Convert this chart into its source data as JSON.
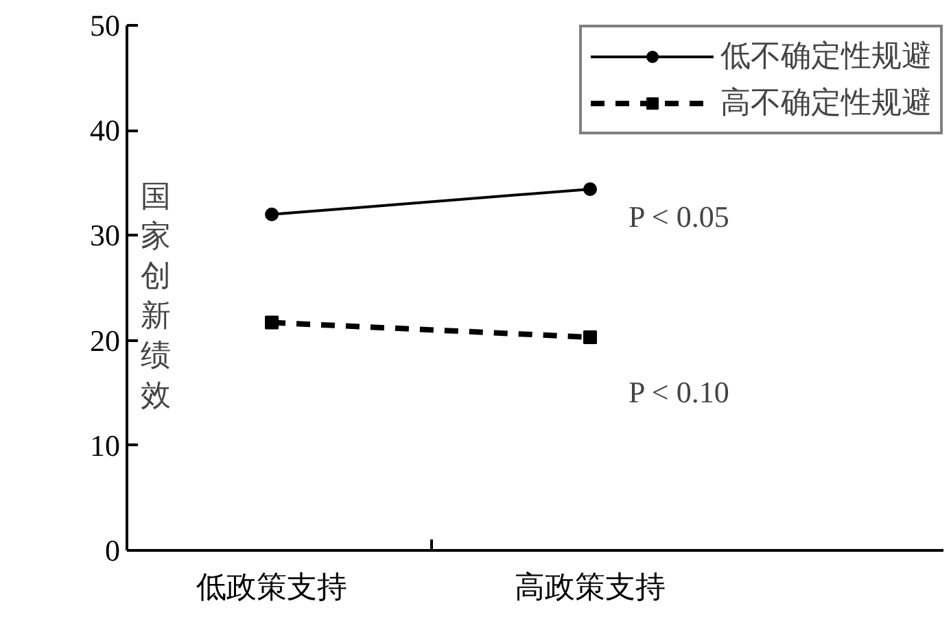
{
  "chart_data": {
    "type": "line",
    "ylabel": "国家创新绩效",
    "categories": [
      "低政策支持",
      "高政策支持"
    ],
    "series": [
      {
        "name": "低不确定性规避",
        "color": "#000000",
        "values": [
          32,
          34.4
        ],
        "marker": "circle",
        "line_style": "solid"
      },
      {
        "name": "高不确定性规避",
        "color": "#000000",
        "values": [
          21.7,
          20.3
        ],
        "marker": "square",
        "line_style": "dashed"
      }
    ],
    "annotations": [
      "P < 0.05",
      "P < 0.10"
    ],
    "ylim": [
      0,
      50
    ],
    "yticks": [
      0,
      10,
      20,
      30,
      40,
      50
    ],
    "grid": false,
    "legend": "top right"
  }
}
